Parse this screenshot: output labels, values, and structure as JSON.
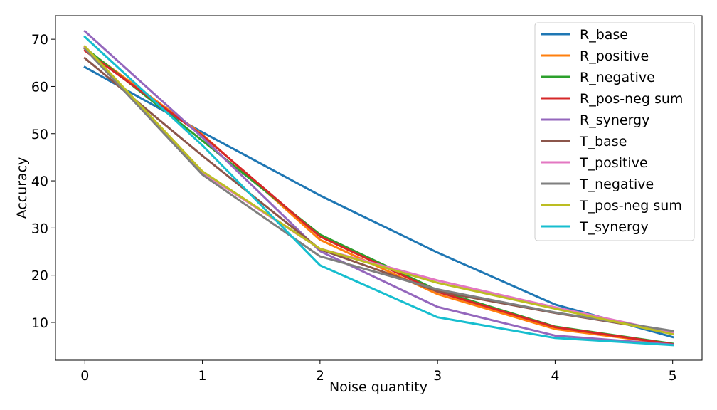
{
  "chart_data": {
    "type": "line",
    "title": "",
    "xlabel": "Noise quantity",
    "ylabel": "Accuracy",
    "x": [
      0,
      1,
      2,
      3,
      4,
      5
    ],
    "xlim": [
      -0.25,
      5.25
    ],
    "ylim": [
      2,
      75
    ],
    "xticks": [
      "0",
      "1",
      "2",
      "3",
      "4",
      "5"
    ],
    "yticks": [
      "10",
      "20",
      "30",
      "40",
      "50",
      "60",
      "70"
    ],
    "grid": false,
    "legend_position": "top-right",
    "series": [
      {
        "name": "R_base",
        "color": "#1f77b4",
        "values": [
          64.1,
          50.3,
          36.9,
          24.8,
          13.8,
          6.9
        ]
      },
      {
        "name": "R_positive",
        "color": "#ff7f0e",
        "values": [
          68.0,
          49.8,
          27.5,
          16.0,
          8.6,
          5.4
        ]
      },
      {
        "name": "R_negative",
        "color": "#2ca02c",
        "values": [
          68.2,
          48.5,
          28.6,
          16.8,
          9.1,
          5.5
        ]
      },
      {
        "name": "R_pos-neg sum",
        "color": "#d62728",
        "values": [
          67.6,
          49.6,
          28.2,
          16.5,
          9.0,
          5.4
        ]
      },
      {
        "name": "R_synergy",
        "color": "#9467bd",
        "values": [
          71.7,
          49.2,
          25.1,
          13.3,
          7.2,
          5.3
        ]
      },
      {
        "name": "T_base",
        "color": "#8c564b",
        "values": [
          66.0,
          45.3,
          25.5,
          16.6,
          12.0,
          8.0
        ]
      },
      {
        "name": "T_positive",
        "color": "#e377c2",
        "values": [
          68.3,
          41.7,
          25.6,
          18.9,
          13.2,
          7.8
        ]
      },
      {
        "name": "T_negative",
        "color": "#7f7f7f",
        "values": [
          68.0,
          41.3,
          24.0,
          17.0,
          12.1,
          8.2
        ]
      },
      {
        "name": "T_pos-neg sum",
        "color": "#bcbd22",
        "values": [
          68.5,
          42.0,
          25.6,
          18.4,
          12.9,
          7.5
        ]
      },
      {
        "name": "T_synergy",
        "color": "#17becf",
        "values": [
          70.5,
          47.5,
          22.1,
          11.1,
          6.7,
          5.2
        ]
      }
    ]
  }
}
